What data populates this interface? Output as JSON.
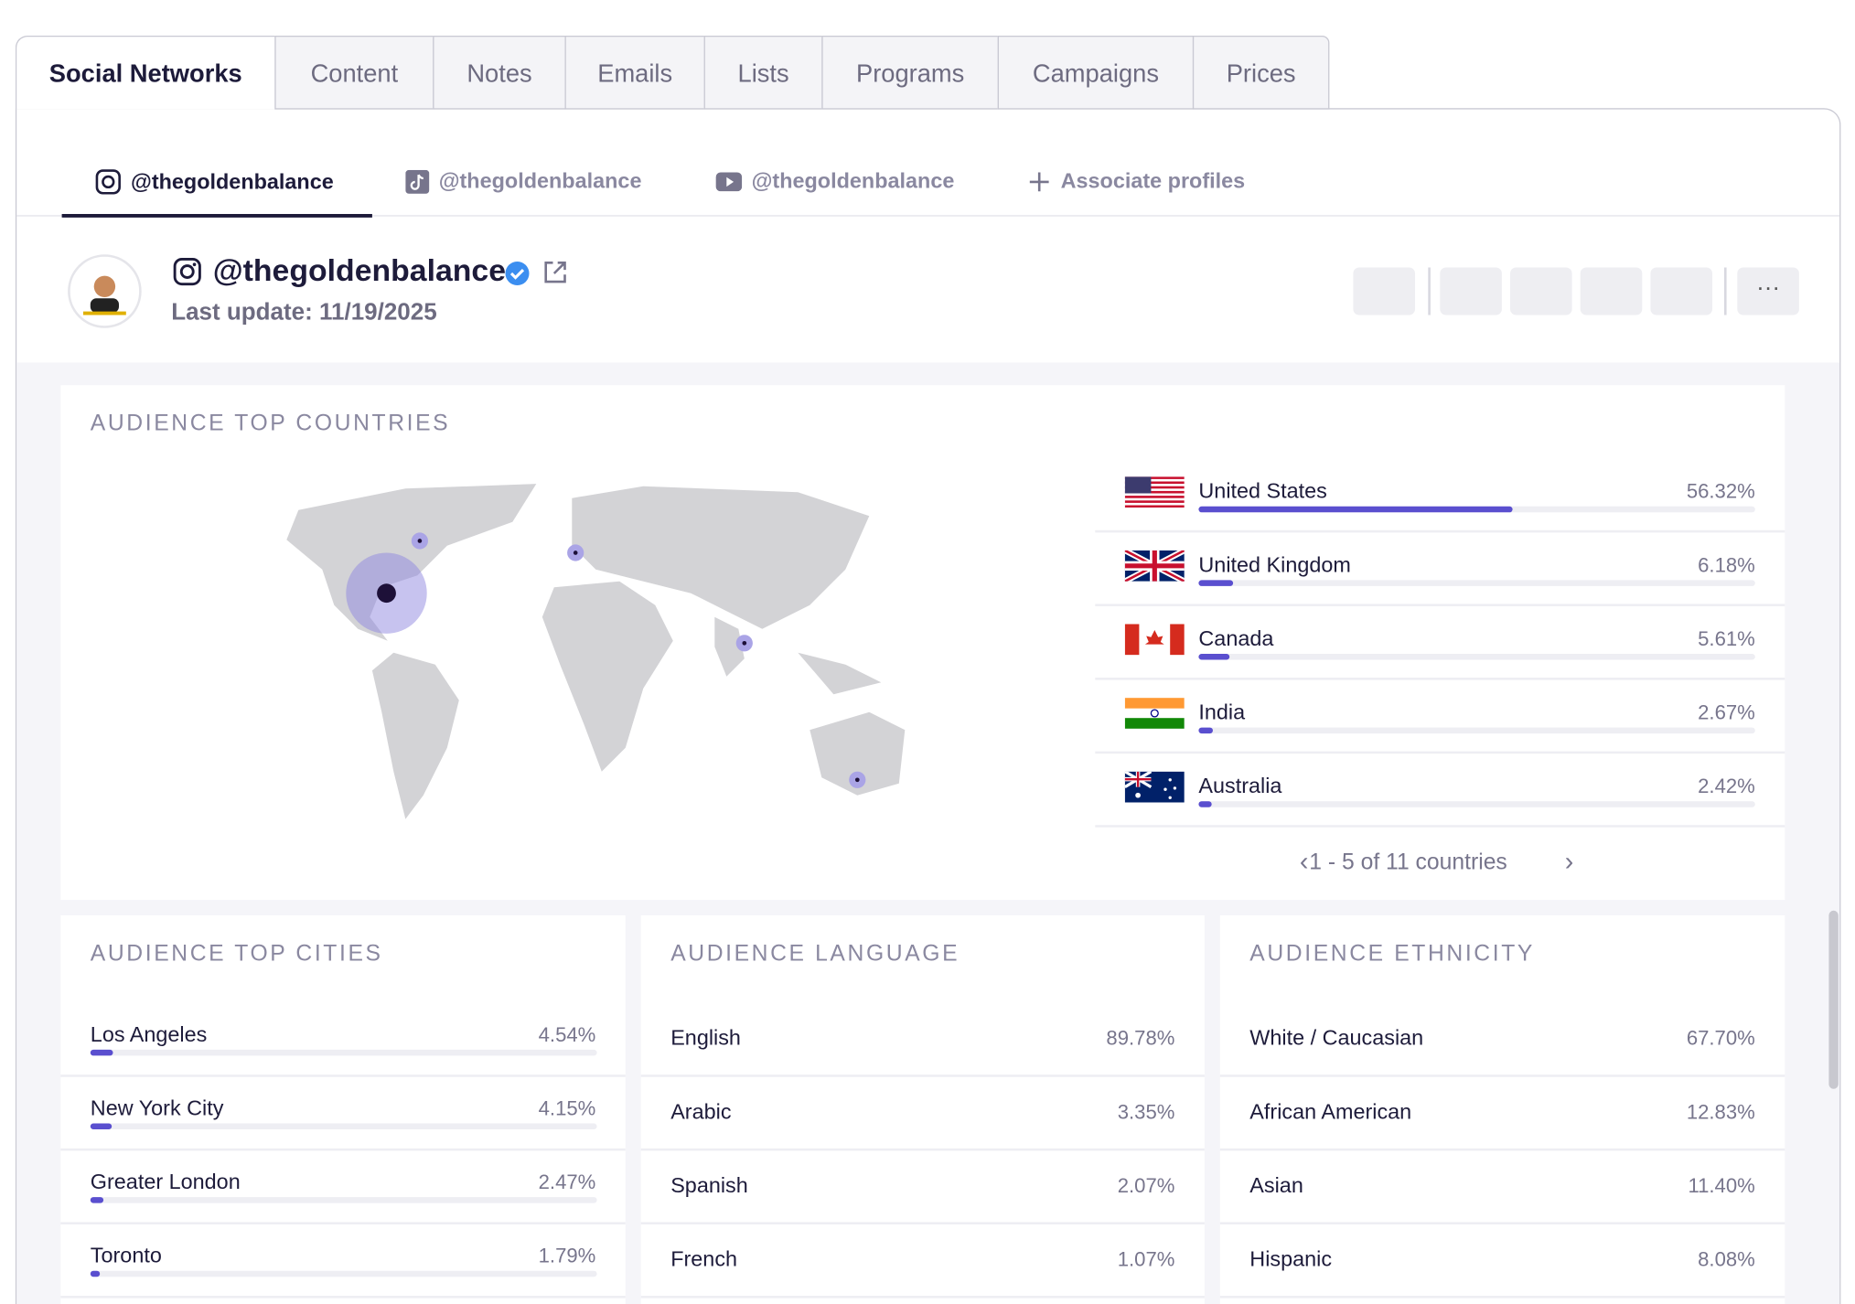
{
  "tabs": [
    "Social Networks",
    "Content",
    "Notes",
    "Emails",
    "Lists",
    "Programs",
    "Campaigns",
    "Prices"
  ],
  "profile_tabs": [
    "@thegoldenbalance",
    "@thegoldenbalance",
    "@thegoldenbalance",
    "Associate profiles"
  ],
  "profile": {
    "handle": "@thegoldenbalance",
    "last_update": "Last update: 11/19/2025"
  },
  "countries": {
    "title": "AUDIENCE TOP COUNTRIES",
    "rows": [
      {
        "name": "United States",
        "value": 56.32,
        "value_label": "56.32%"
      },
      {
        "name": "United Kingdom",
        "value": 6.18,
        "value_label": "6.18%"
      },
      {
        "name": "Canada",
        "value": 5.61,
        "value_label": "5.61%"
      },
      {
        "name": "India",
        "value": 2.67,
        "value_label": "2.67%"
      },
      {
        "name": "Australia",
        "value": 2.42,
        "value_label": "2.42%"
      }
    ],
    "pagination": "1 - 5 of 11 countries"
  },
  "cities": {
    "title": "AUDIENCE TOP CITIES",
    "rows": [
      {
        "name": "Los Angeles",
        "value": 4.54,
        "value_label": "4.54%"
      },
      {
        "name": "New York City",
        "value": 4.15,
        "value_label": "4.15%"
      },
      {
        "name": "Greater London",
        "value": 2.47,
        "value_label": "2.47%"
      },
      {
        "name": "Toronto",
        "value": 1.79,
        "value_label": "1.79%"
      }
    ]
  },
  "language": {
    "title": "AUDIENCE LANGUAGE",
    "rows": [
      {
        "name": "English",
        "value": 89.78,
        "value_label": "89.78%"
      },
      {
        "name": "Arabic",
        "value": 3.35,
        "value_label": "3.35%"
      },
      {
        "name": "Spanish",
        "value": 2.07,
        "value_label": "2.07%"
      },
      {
        "name": "French",
        "value": 1.07,
        "value_label": "1.07%"
      }
    ]
  },
  "ethnicity": {
    "title": "AUDIENCE ETHNICITY",
    "rows": [
      {
        "name": "White / Caucasian",
        "value": 67.7,
        "value_label": "67.70%"
      },
      {
        "name": "African American",
        "value": 12.83,
        "value_label": "12.83%"
      },
      {
        "name": "Asian",
        "value": 11.4,
        "value_label": "11.40%"
      },
      {
        "name": "Hispanic",
        "value": 8.08,
        "value_label": "8.08%"
      }
    ]
  }
}
